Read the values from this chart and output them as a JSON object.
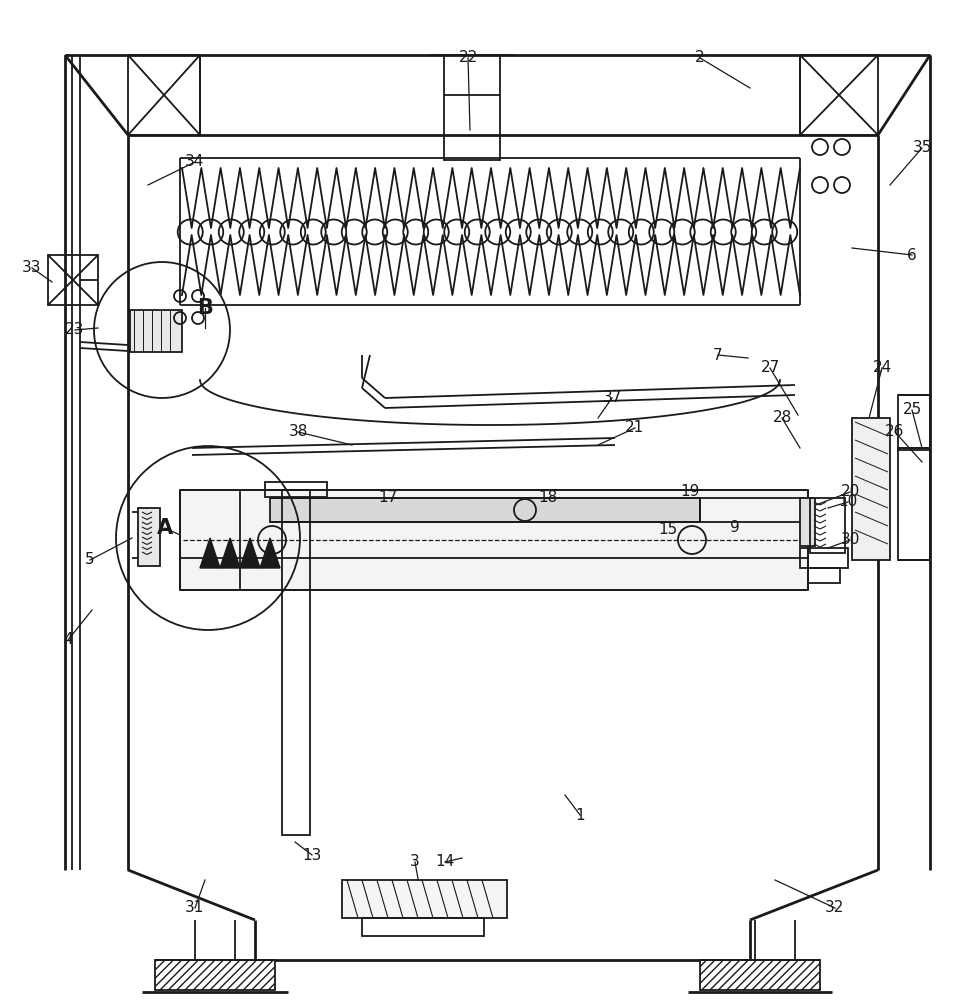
{
  "bg_color": "#ffffff",
  "line_color": "#1a1a1a",
  "lw": 1.3,
  "tlw": 2.0,
  "figsize": [
    9.78,
    10.0
  ],
  "dpi": 100,
  "labels": [
    [
      "1",
      580,
      815
    ],
    [
      "2",
      700,
      58
    ],
    [
      "3",
      415,
      862
    ],
    [
      "4",
      68,
      640
    ],
    [
      "5",
      90,
      560
    ],
    [
      "6",
      912,
      255
    ],
    [
      "7",
      718,
      355
    ],
    [
      "9",
      735,
      527
    ],
    [
      "10",
      848,
      502
    ],
    [
      "13",
      312,
      855
    ],
    [
      "14",
      445,
      862
    ],
    [
      "15",
      668,
      530
    ],
    [
      "17",
      388,
      498
    ],
    [
      "18",
      548,
      498
    ],
    [
      "19",
      690,
      492
    ],
    [
      "20",
      850,
      492
    ],
    [
      "21",
      635,
      428
    ],
    [
      "22",
      468,
      58
    ],
    [
      "23",
      75,
      330
    ],
    [
      "24",
      882,
      368
    ],
    [
      "25",
      912,
      410
    ],
    [
      "26",
      895,
      432
    ],
    [
      "27",
      770,
      368
    ],
    [
      "28",
      782,
      418
    ],
    [
      "30",
      850,
      540
    ],
    [
      "31",
      195,
      908
    ],
    [
      "32",
      835,
      908
    ],
    [
      "33",
      32,
      268
    ],
    [
      "34",
      195,
      162
    ],
    [
      "35",
      922,
      148
    ],
    [
      "37",
      612,
      398
    ],
    [
      "38",
      298,
      432
    ],
    [
      "A",
      165,
      528
    ],
    [
      "B",
      205,
      308
    ]
  ],
  "leader_lines": [
    [
      "1",
      580,
      815,
      565,
      795
    ],
    [
      "2",
      700,
      58,
      750,
      88
    ],
    [
      "3",
      415,
      862,
      420,
      890
    ],
    [
      "4",
      68,
      640,
      92,
      610
    ],
    [
      "5",
      90,
      560,
      132,
      538
    ],
    [
      "6",
      912,
      255,
      852,
      248
    ],
    [
      "7",
      718,
      355,
      748,
      358
    ],
    [
      "9",
      735,
      527,
      712,
      532
    ],
    [
      "10",
      848,
      502,
      828,
      508
    ],
    [
      "13",
      312,
      855,
      295,
      842
    ],
    [
      "14",
      445,
      862,
      462,
      858
    ],
    [
      "15",
      668,
      530,
      648,
      532
    ],
    [
      "17",
      388,
      498,
      420,
      508
    ],
    [
      "18",
      548,
      498,
      525,
      510
    ],
    [
      "19",
      690,
      492,
      705,
      508
    ],
    [
      "20",
      850,
      492,
      808,
      508
    ],
    [
      "21",
      635,
      428,
      598,
      445
    ],
    [
      "22",
      468,
      58,
      470,
      130
    ],
    [
      "23",
      75,
      330,
      98,
      328
    ],
    [
      "24",
      882,
      368,
      868,
      422
    ],
    [
      "25",
      912,
      410,
      922,
      448
    ],
    [
      "26",
      895,
      432,
      922,
      462
    ],
    [
      "27",
      770,
      368,
      798,
      415
    ],
    [
      "28",
      782,
      418,
      800,
      448
    ],
    [
      "30",
      850,
      540,
      828,
      548
    ],
    [
      "31",
      195,
      908,
      205,
      880
    ],
    [
      "32",
      835,
      908,
      775,
      880
    ],
    [
      "33",
      32,
      268,
      52,
      282
    ],
    [
      "34",
      195,
      162,
      148,
      185
    ],
    [
      "35",
      922,
      148,
      890,
      185
    ],
    [
      "37",
      612,
      398,
      598,
      418
    ],
    [
      "38",
      298,
      432,
      352,
      445
    ],
    [
      "A",
      165,
      528,
      195,
      542
    ],
    [
      "B",
      205,
      308,
      205,
      328
    ]
  ]
}
